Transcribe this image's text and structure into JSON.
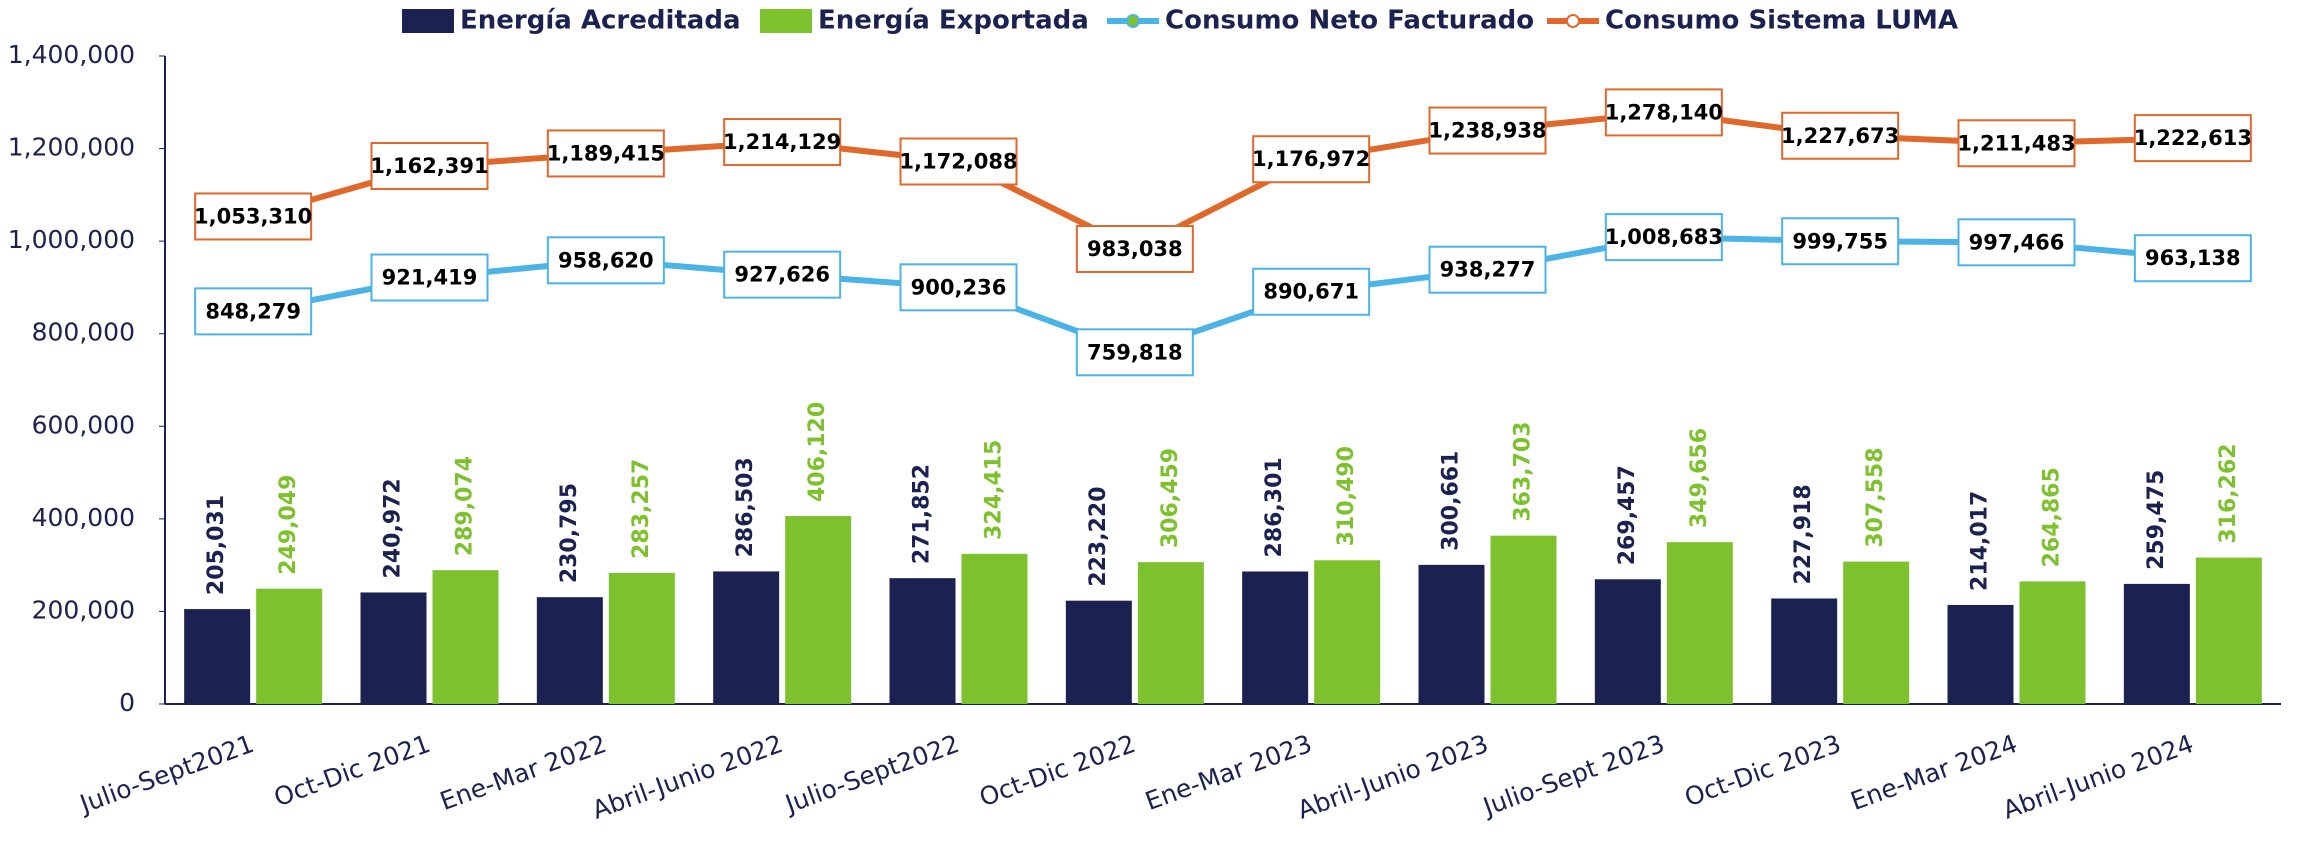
{
  "chart_data": {
    "type": "bar_line",
    "categories": [
      "Julio-Sept2021",
      "Oct-Dic 2021",
      "Ene-Mar 2022",
      "Abril-Junio 2022",
      "Julio-Sept2022",
      "Oct-Dic 2022",
      "Ene-Mar 2023",
      "Abril-Junio 2023",
      "Julio-Sept 2023",
      "Oct-Dic 2023",
      "Ene-Mar 2024",
      "Abril-Junio 2024"
    ],
    "series": [
      {
        "name": "Energía Acreditada",
        "type": "bar",
        "color": "#1b2150",
        "values": [
          205031,
          240972,
          230795,
          286503,
          271852,
          223220,
          286301,
          300661,
          269457,
          227918,
          214017,
          259475
        ],
        "value_labels": [
          "205,031",
          "240,972",
          "230,795",
          "286,503",
          "271,852",
          "223,220",
          "286,301",
          "300,661",
          "269,457",
          "227,918",
          "214,017",
          "259,475"
        ]
      },
      {
        "name": "Energía Exportada",
        "type": "bar",
        "color": "#7dc12d",
        "values": [
          249049,
          289074,
          283257,
          406120,
          324415,
          306459,
          310490,
          363703,
          349656,
          307558,
          264865,
          316262
        ],
        "value_labels": [
          "249,049",
          "289,074",
          "283,257",
          "406,120",
          "324,415",
          "306,459",
          "310,490",
          "363,703",
          "349,656",
          "307,558",
          "264,865",
          "316,262"
        ]
      },
      {
        "name": "Consumo Neto Facturado",
        "type": "line",
        "color": "#4bb3e6",
        "values": [
          848279,
          921419,
          958620,
          927626,
          900236,
          759818,
          890671,
          938277,
          1008683,
          999755,
          997466,
          963138
        ],
        "value_labels": [
          "848,279",
          "921,419",
          "958,620",
          "927,626",
          "900,236",
          "759,818",
          "890,671",
          "938,277",
          "1,008,683",
          "999,755",
          "997,466",
          "963,138"
        ]
      },
      {
        "name": "Consumo Sistema LUMA",
        "type": "line",
        "color": "#e0682a",
        "values": [
          1053310,
          1162391,
          1189415,
          1214129,
          1172088,
          983038,
          1176972,
          1238938,
          1278140,
          1227673,
          1211483,
          1222613
        ],
        "value_labels": [
          "1,053,310",
          "1,162,391",
          "1,189,415",
          "1,214,129",
          "1,172,088",
          "983,038",
          "1,176,972",
          "1,238,938",
          "1,278,140",
          "1,227,673",
          "1,211,483",
          "1,222,613"
        ]
      }
    ],
    "ylim": [
      0,
      1400000
    ],
    "yticks": [
      0,
      {
        "value": 200000,
        "label": "200,000"
      },
      {
        "value": 400000,
        "label": "400,000"
      },
      {
        "value": 600000,
        "label": "600,000"
      },
      {
        "value": 800000,
        "label": "800,000"
      },
      {
        "value": 1000000,
        "label": "1,000,000"
      },
      {
        "value": 1200000,
        "label": "1,200,000"
      },
      {
        "value": 1400000,
        "label": "1,400,000"
      }
    ],
    "grid": false
  }
}
